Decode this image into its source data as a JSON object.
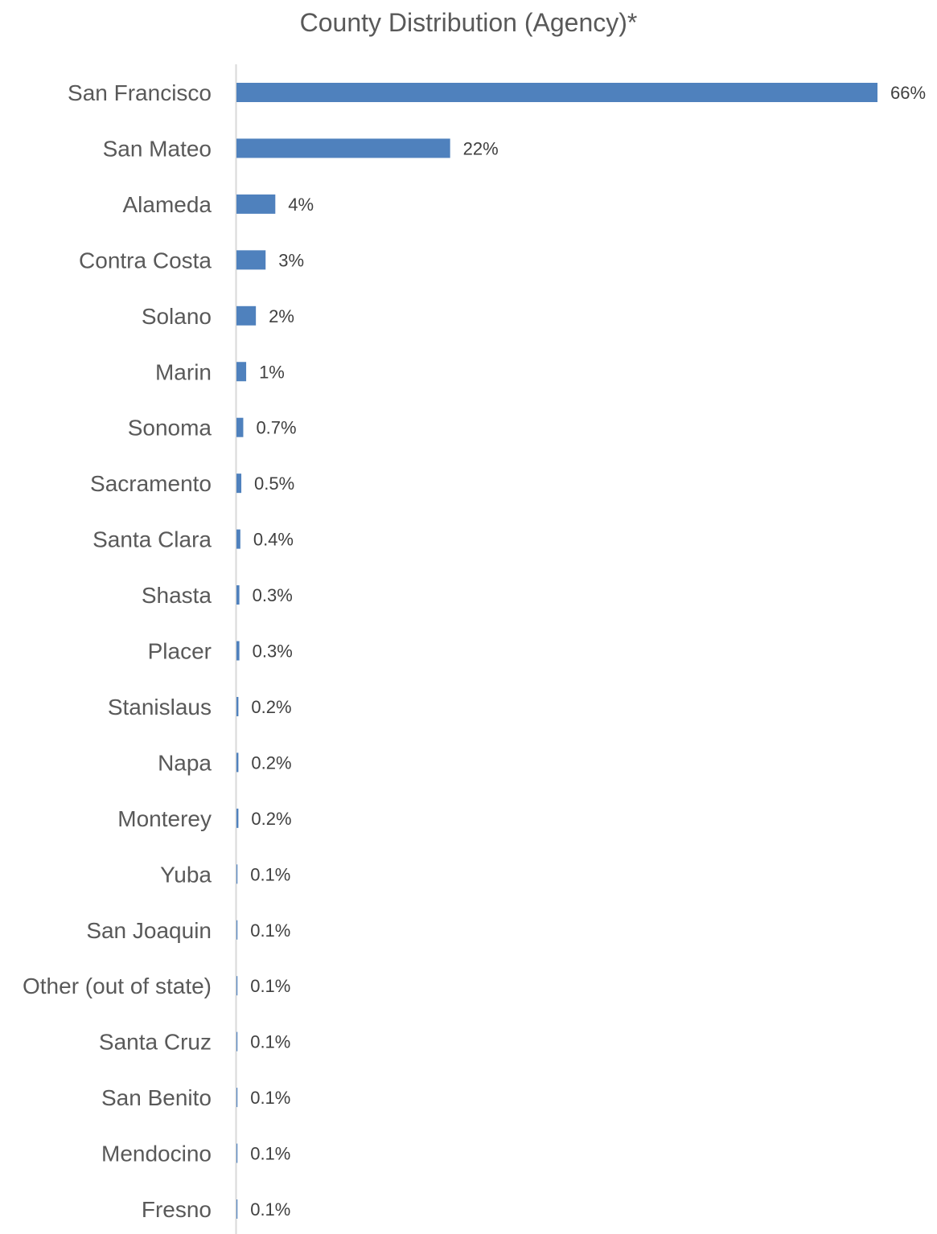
{
  "chart_data": {
    "type": "bar",
    "orientation": "horizontal",
    "title": "County Distribution (Agency)*",
    "xlabel": "",
    "ylabel": "",
    "bar_color": "#4F81BD",
    "categories": [
      "San Francisco",
      "San Mateo",
      "Alameda",
      "Contra Costa",
      "Solano",
      "Marin",
      "Sonoma",
      "Sacramento",
      "Santa Clara",
      "Shasta",
      "Placer",
      "Stanislaus",
      "Napa",
      "Monterey",
      "Yuba",
      "San Joaquin",
      "Other (out of state)",
      "Santa Cruz",
      "San Benito",
      "Mendocino",
      "Fresno"
    ],
    "values": [
      66,
      22,
      4,
      3,
      2,
      1,
      0.7,
      0.5,
      0.4,
      0.3,
      0.3,
      0.2,
      0.2,
      0.2,
      0.1,
      0.1,
      0.1,
      0.1,
      0.1,
      0.1,
      0.1
    ],
    "data_labels": [
      "66%",
      "22%",
      "4%",
      "3%",
      "2%",
      "1%",
      "0.7%",
      "0.5%",
      "0.4%",
      "0.3%",
      "0.3%",
      "0.2%",
      "0.2%",
      "0.2%",
      "0.1%",
      "0.1%",
      "0.1%",
      "0.1%",
      "0.1%",
      "0.1%",
      "0.1%"
    ],
    "grid": false,
    "legend": "none"
  }
}
